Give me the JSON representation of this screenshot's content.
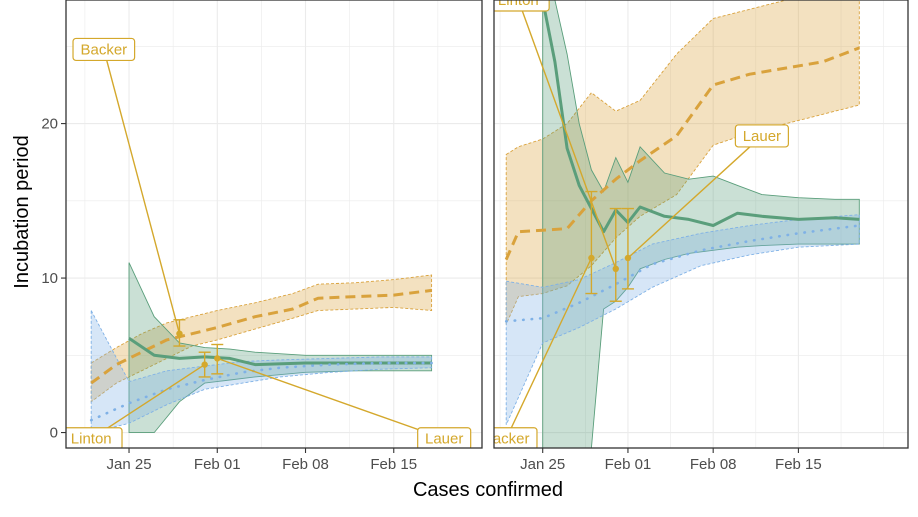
{
  "chart_data": {
    "type": "line",
    "xlabel": "Cases confirmed",
    "ylabel": "Incubation period",
    "colors": {
      "green": "#5a9e7b",
      "orange": "#d9a23c",
      "blue": "#7fb1e6",
      "annotation": "#d4a82c",
      "grid": "#ebebeb",
      "panel_border": "#333333"
    },
    "grid": true,
    "panels": [
      {
        "xlim": [
          "2020-01-20",
          "2020-02-22"
        ],
        "ylim": [
          -1,
          28
        ],
        "x_ticks": [
          {
            "date": "2020-01-25",
            "label": "Jan 25"
          },
          {
            "date": "2020-02-01",
            "label": "Feb 01"
          },
          {
            "date": "2020-02-08",
            "label": "Feb 08"
          },
          {
            "date": "2020-02-15",
            "label": "Feb 15"
          }
        ],
        "y_ticks": [
          {
            "value": 0,
            "label": "0"
          },
          {
            "value": 10,
            "label": "10"
          },
          {
            "value": 20,
            "label": "20"
          }
        ],
        "series": [
          {
            "color": "orange",
            "style": "dashed",
            "x": [
              "2020-01-22",
              "2020-01-24",
              "2020-01-26",
              "2020-01-28",
              "2020-01-30",
              "2020-02-01",
              "2020-02-04",
              "2020-02-07",
              "2020-02-09",
              "2020-02-12",
              "2020-02-15",
              "2020-02-18"
            ],
            "y": [
              3.2,
              4.4,
              5.2,
              6.0,
              6.4,
              6.8,
              7.5,
              8.0,
              8.7,
              8.8,
              8.9,
              9.2
            ],
            "lower": [
              2.0,
              3.2,
              4.0,
              4.8,
              5.6,
              6.0,
              6.7,
              7.4,
              7.9,
              8.0,
              8.1,
              7.9
            ],
            "upper": [
              4.5,
              5.5,
              6.4,
              7.1,
              7.5,
              7.9,
              8.4,
              9.0,
              9.6,
              9.7,
              9.9,
              10.2
            ]
          },
          {
            "color": "green",
            "style": "solid",
            "x": [
              "2020-01-25",
              "2020-01-27",
              "2020-01-29",
              "2020-01-31",
              "2020-02-02",
              "2020-02-04",
              "2020-02-08",
              "2020-02-12",
              "2020-02-15",
              "2020-02-18"
            ],
            "y": [
              6.1,
              5.0,
              4.8,
              4.9,
              4.8,
              4.4,
              4.5,
              4.5,
              4.5,
              4.5
            ],
            "lower": [
              0.0,
              0.0,
              2.0,
              3.2,
              3.4,
              3.6,
              3.9,
              4.0,
              4.0,
              4.0
            ],
            "upper": [
              11.0,
              7.5,
              5.8,
              5.5,
              5.4,
              5.2,
              5.0,
              5.0,
              5.0,
              5.0
            ]
          },
          {
            "color": "blue",
            "style": "dotted",
            "x": [
              "2020-01-22",
              "2020-01-25",
              "2020-01-28",
              "2020-01-31",
              "2020-02-03",
              "2020-02-06",
              "2020-02-10",
              "2020-02-14",
              "2020-02-18"
            ],
            "y": [
              0.8,
              1.9,
              2.8,
              3.4,
              3.9,
              4.2,
              4.4,
              4.5,
              4.5
            ],
            "lower": [
              0.0,
              0.6,
              1.8,
              2.8,
              3.2,
              3.6,
              3.9,
              4.1,
              4.2
            ],
            "upper": [
              7.9,
              3.3,
              4.0,
              4.3,
              4.6,
              4.7,
              4.8,
              4.9,
              4.9
            ]
          }
        ],
        "estimates": [
          {
            "label": "Backer",
            "date": "2020-01-29",
            "y": 6.4,
            "lower": 5.6,
            "upper": 7.3,
            "box": {
              "date": "2020-01-23",
              "y": 24.8
            }
          },
          {
            "label": "Linton",
            "date": "2020-01-31",
            "y": 4.4,
            "lower": 3.6,
            "upper": 5.2,
            "box": {
              "date": "2020-01-22",
              "y": -0.4
            }
          },
          {
            "label": "Lauer",
            "date": "2020-02-01",
            "y": 4.8,
            "lower": 3.8,
            "upper": 5.7,
            "box": {
              "date": "2020-02-19",
              "y": -0.4
            }
          }
        ]
      },
      {
        "xlim": [
          "2020-01-21",
          "2020-02-24"
        ],
        "ylim": [
          -1,
          28
        ],
        "x_ticks": [
          {
            "date": "2020-01-25",
            "label": "Jan 25"
          },
          {
            "date": "2020-02-01",
            "label": "Feb 01"
          },
          {
            "date": "2020-02-08",
            "label": "Feb 08"
          },
          {
            "date": "2020-02-15",
            "label": "Feb 15"
          }
        ],
        "series": [
          {
            "color": "orange",
            "style": "dashed",
            "x": [
              "2020-01-22",
              "2020-01-23",
              "2020-01-25",
              "2020-01-27",
              "2020-01-29",
              "2020-01-31",
              "2020-02-02",
              "2020-02-05",
              "2020-02-08",
              "2020-02-11",
              "2020-02-14",
              "2020-02-17",
              "2020-02-20"
            ],
            "y": [
              11.2,
              13.0,
              13.1,
              13.2,
              15.0,
              16.4,
              17.6,
              19.2,
              22.5,
              23.2,
              23.6,
              24.0,
              24.9
            ],
            "lower": [
              7.0,
              8.8,
              9.0,
              9.5,
              10.8,
              12.6,
              14.0,
              15.4,
              18.6,
              19.4,
              20.0,
              20.6,
              21.2
            ],
            "upper": [
              18.0,
              18.5,
              19.0,
              20.0,
              22.0,
              20.8,
              21.5,
              24.5,
              26.8,
              27.4,
              28.0,
              28.0,
              28.0
            ]
          },
          {
            "color": "green",
            "style": "solid",
            "x": [
              "2020-01-25",
              "2020-01-26",
              "2020-01-27",
              "2020-01-28",
              "2020-01-29",
              "2020-01-30",
              "2020-01-31",
              "2020-02-01",
              "2020-02-02",
              "2020-02-04",
              "2020-02-06",
              "2020-02-08",
              "2020-02-10",
              "2020-02-12",
              "2020-02-15",
              "2020-02-18",
              "2020-02-20"
            ],
            "y": [
              28.0,
              24.0,
              18.4,
              16.0,
              14.5,
              13.0,
              14.4,
              13.6,
              14.6,
              14.0,
              13.8,
              13.4,
              14.2,
              14.0,
              13.8,
              13.9,
              13.8
            ],
            "lower": [
              -1.0,
              -1.0,
              -1.0,
              -1.0,
              -1.0,
              8.0,
              8.5,
              9.4,
              10.6,
              11.2,
              11.6,
              11.8,
              12.0,
              12.1,
              12.2,
              12.2,
              12.2
            ],
            "upper": [
              28.0,
              28.0,
              24.5,
              20.0,
              17.0,
              15.6,
              17.8,
              16.2,
              18.5,
              16.8,
              16.4,
              16.6,
              16.0,
              15.4,
              15.2,
              15.1,
              15.1
            ]
          },
          {
            "color": "blue",
            "style": "dotted",
            "x": [
              "2020-01-22",
              "2020-01-25",
              "2020-01-28",
              "2020-01-31",
              "2020-02-03",
              "2020-02-07",
              "2020-02-11",
              "2020-02-15",
              "2020-02-20"
            ],
            "y": [
              7.2,
              7.4,
              8.4,
              9.6,
              10.9,
              11.8,
              12.4,
              12.9,
              13.4
            ],
            "lower": [
              0.5,
              5.8,
              6.8,
              8.0,
              9.4,
              10.8,
              11.5,
              12.0,
              12.2
            ],
            "upper": [
              9.8,
              9.4,
              9.9,
              11.0,
              12.2,
              12.9,
              13.4,
              13.8,
              14.1
            ]
          }
        ],
        "estimates": [
          {
            "label": "Backer",
            "date": "2020-01-29",
            "y": 11.3,
            "lower": 9.0,
            "upper": 15.6,
            "box": {
              "date": "2020-01-22",
              "y": -0.4
            }
          },
          {
            "label": "Linton",
            "date": "2020-01-31",
            "y": 10.6,
            "lower": 8.5,
            "upper": 14.5,
            "box": {
              "date": "2020-01-23",
              "y": 28.0
            }
          },
          {
            "label": "Lauer",
            "date": "2020-02-01",
            "y": 11.3,
            "lower": 9.3,
            "upper": 14.5,
            "box": {
              "date": "2020-02-12",
              "y": 19.2
            }
          }
        ]
      }
    ]
  }
}
